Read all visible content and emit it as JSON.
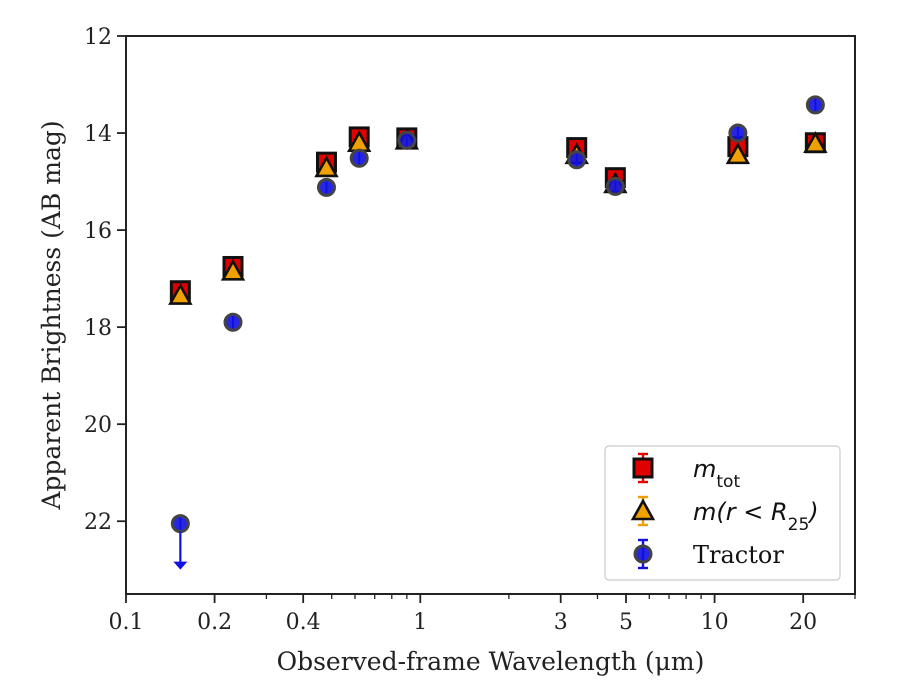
{
  "chart_data": {
    "type": "scatter",
    "xlabel": "Observed-frame Wavelength (μm)",
    "ylabel": "Apparent Brightness (AB mag)",
    "x_scale": "log",
    "xlim": [
      0.1,
      30
    ],
    "ylim": [
      23.5,
      12
    ],
    "x_ticks": [
      {
        "value": 0.1,
        "label": "0.1"
      },
      {
        "value": 0.2,
        "label": "0.2"
      },
      {
        "value": 0.4,
        "label": "0.4"
      },
      {
        "value": 1,
        "label": "1"
      },
      {
        "value": 3,
        "label": "3"
      },
      {
        "value": 5,
        "label": "5"
      },
      {
        "value": 10,
        "label": "10"
      },
      {
        "value": 20,
        "label": "20"
      }
    ],
    "y_ticks": [
      12,
      14,
      16,
      18,
      20,
      22
    ],
    "grid": false,
    "legend_position": "bottom-right",
    "series": [
      {
        "name": "m_tot",
        "legend_label": "m",
        "legend_subscript": "tot",
        "marker": "square",
        "color": "#e00000",
        "edge": "#111111",
        "points": [
          {
            "x": 0.153,
            "y": 17.25
          },
          {
            "x": 0.231,
            "y": 16.75
          },
          {
            "x": 0.48,
            "y": 14.6
          },
          {
            "x": 0.62,
            "y": 14.08
          },
          {
            "x": 0.9,
            "y": 14.1
          },
          {
            "x": 3.4,
            "y": 14.3
          },
          {
            "x": 4.6,
            "y": 14.92
          },
          {
            "x": 12.0,
            "y": 14.28
          },
          {
            "x": 22.0,
            "y": 14.2
          }
        ]
      },
      {
        "name": "m(r<R_25)",
        "legend_label": "m(r < R",
        "legend_subscript": "25",
        "legend_close": ")",
        "marker": "triangle",
        "color": "#f0a000",
        "edge": "#111111",
        "points": [
          {
            "x": 0.153,
            "y": 17.35
          },
          {
            "x": 0.231,
            "y": 16.85
          },
          {
            "x": 0.48,
            "y": 14.72
          },
          {
            "x": 0.62,
            "y": 14.2
          },
          {
            "x": 0.9,
            "y": 14.15
          },
          {
            "x": 3.4,
            "y": 14.45
          },
          {
            "x": 4.6,
            "y": 15.05
          },
          {
            "x": 12.0,
            "y": 14.45
          },
          {
            "x": 22.0,
            "y": 14.22
          }
        ]
      },
      {
        "name": "Tractor",
        "legend_label": "Tractor",
        "marker": "circle",
        "color": "#1010e0",
        "edge": "#444444",
        "points": [
          {
            "x": 0.153,
            "y": 22.05,
            "upper_limit": true
          },
          {
            "x": 0.231,
            "y": 17.9
          },
          {
            "x": 0.48,
            "y": 15.12
          },
          {
            "x": 0.62,
            "y": 14.52
          },
          {
            "x": 0.9,
            "y": 14.15
          },
          {
            "x": 3.4,
            "y": 14.55
          },
          {
            "x": 4.6,
            "y": 15.1
          },
          {
            "x": 12.0,
            "y": 14.0
          },
          {
            "x": 22.0,
            "y": 13.42
          }
        ]
      }
    ]
  }
}
